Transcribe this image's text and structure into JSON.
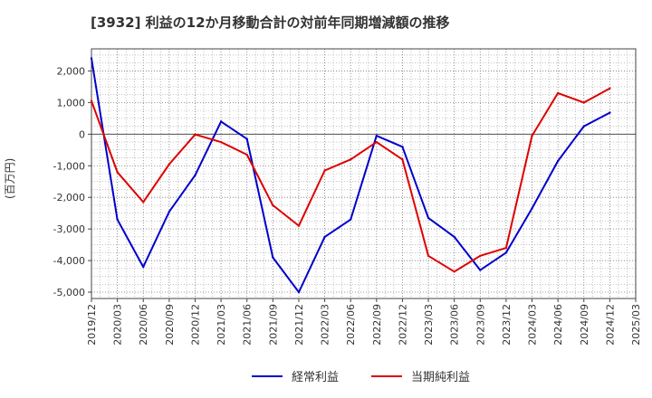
{
  "chart_data": {
    "type": "line",
    "title": "[3932]  利益の12か月移動合計の対前年同期増減額の推移",
    "ylabel": "(百万円)",
    "xlabel": "",
    "ylim": [
      -5200,
      2700
    ],
    "yticks": [
      2000,
      1000,
      0,
      -1000,
      -2000,
      -3000,
      -4000,
      -5000
    ],
    "ytick_labels": [
      "2,000",
      "1,000",
      "0",
      "-1,000",
      "-2,000",
      "-3,000",
      "-4,000",
      "-5,000"
    ],
    "categories": [
      "2019/12",
      "2020/03",
      "2020/06",
      "2020/09",
      "2020/12",
      "2021/03",
      "2021/06",
      "2021/09",
      "2021/12",
      "2022/03",
      "2022/06",
      "2022/09",
      "2022/12",
      "2023/03",
      "2023/06",
      "2023/09",
      "2023/12",
      "2024/03",
      "2024/06",
      "2024/09",
      "2024/12",
      "2025/03"
    ],
    "series": [
      {
        "name": "経常利益",
        "color": "#0000cc",
        "values": [
          2400,
          -2700,
          -4200,
          -2450,
          -1300,
          400,
          -150,
          -3900,
          -5000,
          -3250,
          -2700,
          -50,
          -400,
          -2650,
          -3250,
          -4300,
          -3750,
          -2350,
          -850,
          250,
          680,
          null
        ]
      },
      {
        "name": "当期純利益",
        "color": "#dd0000",
        "values": [
          1050,
          -1200,
          -2150,
          -950,
          -10,
          -250,
          -650,
          -2250,
          -2900,
          -1150,
          -800,
          -250,
          -800,
          -3850,
          -4350,
          -3850,
          -3600,
          -50,
          1300,
          1000,
          1450,
          null
        ]
      }
    ],
    "grid": true,
    "legend_position": "bottom-center"
  }
}
